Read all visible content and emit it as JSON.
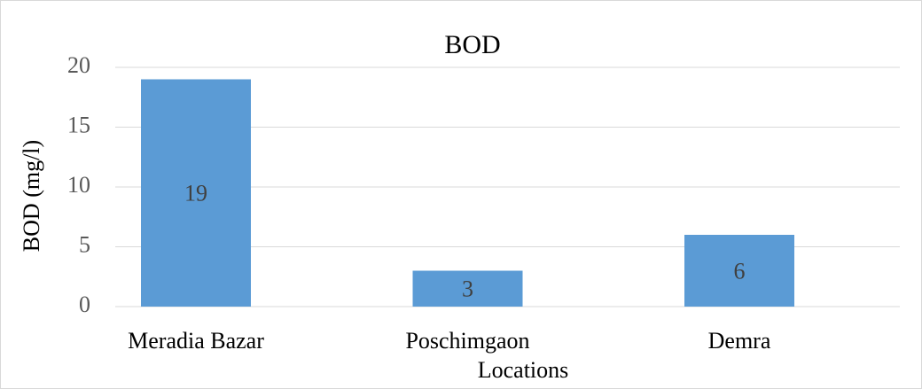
{
  "chart_data": {
    "type": "bar",
    "title": "BOD",
    "y_label": "BOD (mg/l)",
    "x_label": "Locations",
    "categories": [
      "Meradia Bazar",
      "Poschimgaon",
      "Demra"
    ],
    "values": [
      19,
      3,
      6
    ],
    "color": "#5b9bd5",
    "ylim": [
      0,
      20
    ],
    "yticks": [
      0,
      5,
      10,
      15,
      20
    ],
    "grid": true
  }
}
